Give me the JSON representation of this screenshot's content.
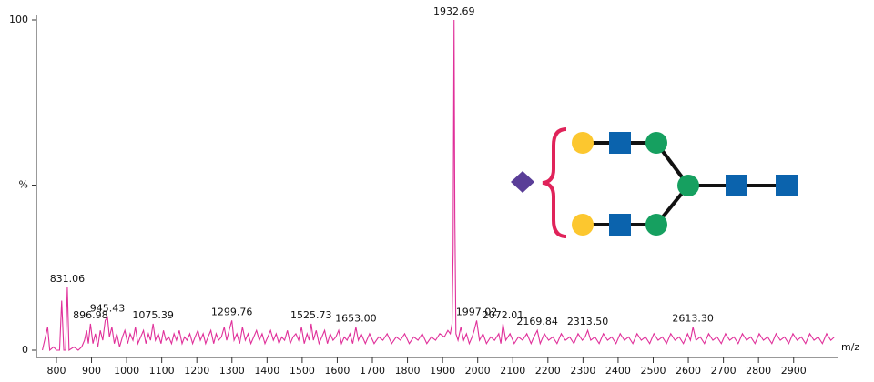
{
  "chart_data": {
    "type": "line",
    "xlabel": "m/z",
    "color": "#e0309a",
    "xlim": [
      756,
      3020
    ],
    "ylim": [
      0,
      100
    ],
    "xticks": [
      800,
      900,
      1000,
      1100,
      1200,
      1300,
      1400,
      1500,
      1600,
      1700,
      1800,
      1900,
      2000,
      2100,
      2200,
      2300,
      2400,
      2500,
      2600,
      2700,
      2800,
      2900
    ],
    "yticks": [
      0,
      {
        "value": 50,
        "label": "%"
      },
      100
    ],
    "x": [
      760,
      775,
      781,
      792,
      800,
      809,
      815,
      821,
      826,
      831.06,
      836,
      850,
      862,
      872,
      880,
      886,
      891,
      896.98,
      904,
      911,
      918,
      925,
      932,
      939,
      945.43,
      951,
      958,
      965,
      972,
      980,
      988,
      995,
      1003,
      1010,
      1018,
      1025,
      1032,
      1040,
      1048,
      1055,
      1062,
      1068,
      1075.39,
      1082,
      1090,
      1098,
      1105,
      1112,
      1120,
      1128,
      1135,
      1142,
      1150,
      1158,
      1165,
      1172,
      1180,
      1188,
      1195,
      1203,
      1210,
      1218,
      1225,
      1232,
      1240,
      1248,
      1255,
      1262,
      1270,
      1278,
      1285,
      1292,
      1299.76,
      1306,
      1314,
      1322,
      1330,
      1338,
      1346,
      1354,
      1362,
      1370,
      1378,
      1386,
      1394,
      1402,
      1410,
      1418,
      1426,
      1434,
      1442,
      1450,
      1458,
      1466,
      1474,
      1482,
      1490,
      1498,
      1506,
      1514,
      1520,
      1525.73,
      1532,
      1540,
      1548,
      1556,
      1564,
      1572,
      1580,
      1588,
      1596,
      1604,
      1612,
      1620,
      1628,
      1636,
      1644,
      1653,
      1660,
      1668,
      1680,
      1692,
      1705,
      1718,
      1730,
      1742,
      1755,
      1768,
      1780,
      1792,
      1805,
      1818,
      1830,
      1842,
      1855,
      1868,
      1880,
      1892,
      1905,
      1915,
      1922,
      1927,
      1930,
      1932.69,
      1935,
      1938,
      1944,
      1952,
      1960,
      1968,
      1976,
      1984,
      1990,
      1997.02,
      2005,
      2015,
      2025,
      2037,
      2048,
      2060,
      2066,
      2072.01,
      2080,
      2092,
      2104,
      2116,
      2128,
      2140,
      2152,
      2160,
      2169.84,
      2178,
      2190,
      2202,
      2214,
      2226,
      2238,
      2250,
      2262,
      2274,
      2286,
      2298,
      2306,
      2313.5,
      2322,
      2334,
      2346,
      2358,
      2370,
      2382,
      2394,
      2406,
      2418,
      2430,
      2442,
      2454,
      2466,
      2478,
      2490,
      2502,
      2514,
      2526,
      2538,
      2550,
      2562,
      2574,
      2586,
      2598,
      2606,
      2613.3,
      2622,
      2634,
      2646,
      2658,
      2670,
      2682,
      2694,
      2706,
      2718,
      2730,
      2742,
      2754,
      2766,
      2778,
      2790,
      2802,
      2814,
      2826,
      2838,
      2850,
      2862,
      2874,
      2886,
      2898,
      2910,
      2922,
      2934,
      2946,
      2958,
      2970,
      2982,
      2994,
      3006,
      3016
    ],
    "values": [
      0,
      7,
      0,
      1,
      0,
      0,
      15,
      0,
      0,
      19,
      0,
      1,
      0,
      1,
      3,
      6,
      2,
      8,
      2,
      5,
      1,
      6,
      3,
      9,
      10,
      4,
      7,
      2,
      5,
      1,
      4,
      6,
      2,
      5,
      3,
      7,
      2,
      4,
      6,
      2,
      5,
      3,
      8,
      3,
      5,
      2,
      6,
      3,
      4,
      2,
      5,
      3,
      6,
      2,
      4,
      3,
      5,
      2,
      4,
      6,
      3,
      5,
      2,
      4,
      6,
      2,
      5,
      3,
      4,
      7,
      3,
      6,
      9,
      3,
      5,
      2,
      7,
      3,
      5,
      2,
      4,
      6,
      3,
      5,
      2,
      4,
      6,
      3,
      5,
      2,
      4,
      3,
      6,
      2,
      4,
      5,
      3,
      7,
      2,
      5,
      3,
      8,
      3,
      6,
      2,
      4,
      6,
      2,
      5,
      3,
      4,
      6,
      2,
      4,
      3,
      5,
      2,
      7,
      3,
      5,
      2,
      5,
      2,
      4,
      3,
      5,
      2,
      4,
      3,
      5,
      2,
      4,
      3,
      5,
      2,
      4,
      3,
      5,
      4,
      6,
      5,
      8,
      30,
      100,
      40,
      5,
      3,
      7,
      3,
      5,
      2,
      4,
      6,
      9,
      3,
      5,
      2,
      4,
      3,
      5,
      2,
      8,
      3,
      5,
      2,
      4,
      3,
      5,
      2,
      4,
      6,
      2,
      5,
      3,
      4,
      2,
      5,
      3,
      4,
      2,
      5,
      3,
      4,
      6,
      3,
      4,
      2,
      5,
      3,
      4,
      2,
      5,
      3,
      4,
      2,
      5,
      3,
      4,
      2,
      5,
      3,
      4,
      2,
      5,
      3,
      4,
      2,
      5,
      3,
      7,
      3,
      4,
      2,
      5,
      3,
      4,
      2,
      5,
      3,
      4,
      2,
      5,
      3,
      4,
      2,
      5,
      3,
      4,
      2,
      5,
      3,
      4,
      2,
      5,
      3,
      4,
      2,
      5,
      3,
      4,
      2,
      5,
      3,
      4
    ],
    "x_labels": [
      null,
      null,
      null,
      null,
      null,
      null,
      null,
      null,
      null,
      "831.06",
      null,
      null,
      null,
      null,
      null,
      null,
      null,
      "896.98",
      null,
      null,
      null,
      null,
      null,
      null,
      "945.43",
      null,
      null,
      null,
      null,
      null,
      null,
      null,
      null,
      null,
      null,
      null,
      null,
      null,
      null,
      null,
      null,
      null,
      "1075.39",
      null,
      null,
      null,
      null,
      null,
      null,
      null,
      null,
      null,
      null,
      null,
      null,
      null,
      null,
      null,
      null,
      null,
      null,
      null,
      null,
      null,
      null,
      null,
      null,
      null,
      null,
      null,
      null,
      null,
      "1299.76",
      null,
      null,
      null,
      null,
      null,
      null,
      null,
      null,
      null,
      null,
      null,
      null,
      null,
      null,
      null,
      null,
      null,
      null,
      null,
      null,
      null,
      null,
      null,
      null,
      null,
      null,
      null,
      null,
      "1525.73",
      null,
      null,
      null,
      null,
      null,
      null,
      null,
      null,
      null,
      null,
      null,
      null,
      null,
      null,
      null,
      "1653.00",
      null,
      null,
      null,
      null,
      null,
      null,
      null,
      null,
      null,
      null,
      null,
      null,
      null,
      null,
      null,
      null,
      null,
      null,
      null,
      null,
      null,
      null,
      null,
      null,
      null,
      "1932.69",
      null,
      null,
      null,
      null,
      null,
      null,
      null,
      null,
      null,
      "1997.02",
      null,
      null,
      null,
      null,
      null,
      null,
      null,
      "2072.01",
      null,
      null,
      null,
      null,
      null,
      null,
      null,
      null,
      "2169.84",
      null,
      null,
      null,
      null,
      null,
      null,
      null,
      null,
      null,
      null,
      null,
      null,
      "2313.50",
      null,
      null,
      null,
      null,
      null,
      null,
      null,
      null,
      null,
      null,
      null,
      null,
      null,
      null,
      null,
      null,
      null,
      null,
      null,
      null,
      null,
      null,
      null,
      null,
      null,
      "2613.30",
      null,
      null,
      null,
      null,
      null,
      null,
      null,
      null,
      null,
      null,
      null,
      null,
      null,
      null,
      null,
      null,
      null,
      null,
      null,
      null,
      null,
      null,
      null,
      null,
      null,
      null,
      null,
      null,
      null,
      null,
      null,
      null,
      null,
      null
    ]
  }
}
